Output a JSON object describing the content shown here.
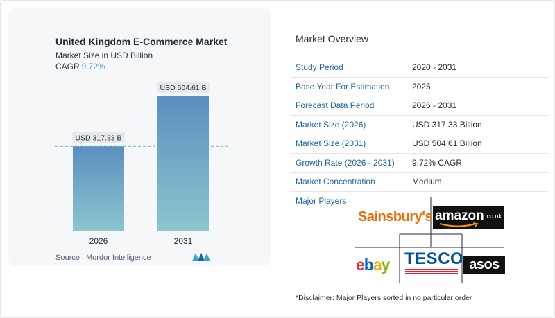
{
  "chart": {
    "title": "United Kingdom E-Commerce Market",
    "subtitle": "Market Size in USD Billion",
    "cagr_label": "CAGR",
    "cagr_value": "9.72%",
    "source": "Source :  Mordor Intelligence"
  },
  "chart_data": {
    "type": "bar",
    "categories": [
      "2026",
      "2031"
    ],
    "values": [
      317.33,
      504.61
    ],
    "value_labels": [
      "USD 317.33 B",
      "USD 504.61 B"
    ],
    "title": "United Kingdom E-Commerce Market",
    "ylabel": "",
    "xlabel": "",
    "ylim": [
      0,
      530
    ],
    "grid": false,
    "colors": {
      "bar_top": "#5b8fbe",
      "bar_bottom": "#8cc6cf",
      "reference_line": "#7fb3c9"
    }
  },
  "overview": {
    "title": "Market Overview",
    "rows": [
      {
        "label": "Study Period",
        "value": "2020 - 2031"
      },
      {
        "label": "Base Year For Estimation",
        "value": "2025"
      },
      {
        "label": "Forecast Data Period",
        "value": "2026 - 2031"
      },
      {
        "label": "Market Size (2026)",
        "value": "USD 317.33 Billion"
      },
      {
        "label": "Market Size (2031)",
        "value": "USD 504.61 Billion"
      },
      {
        "label": "Growth Rate (2026 - 2031)",
        "value": "9.72% CAGR"
      },
      {
        "label": "Market Concentration",
        "value": "Medium"
      }
    ],
    "players_title": "Major Players",
    "players": {
      "sainsburys": "Sainsbury's",
      "amazon": "amazon",
      "amazon_suffix": ".co.uk",
      "ebay": [
        "e",
        "b",
        "a",
        "y"
      ],
      "tesco": "TESCO",
      "asos": "asos"
    },
    "disclaimer": "*Disclaimer: Major Players sorted in no particular order"
  },
  "colors": {
    "accent": "#1e63a8",
    "cagr": "#5aa0c0",
    "sainsburys": "#f06c00",
    "tesco_blue": "#00539f",
    "tesco_red": "#ee1c2e",
    "ebay_e": "#e53238",
    "ebay_b": "#0064d2",
    "ebay_a": "#f5af02",
    "ebay_y": "#86b817"
  }
}
